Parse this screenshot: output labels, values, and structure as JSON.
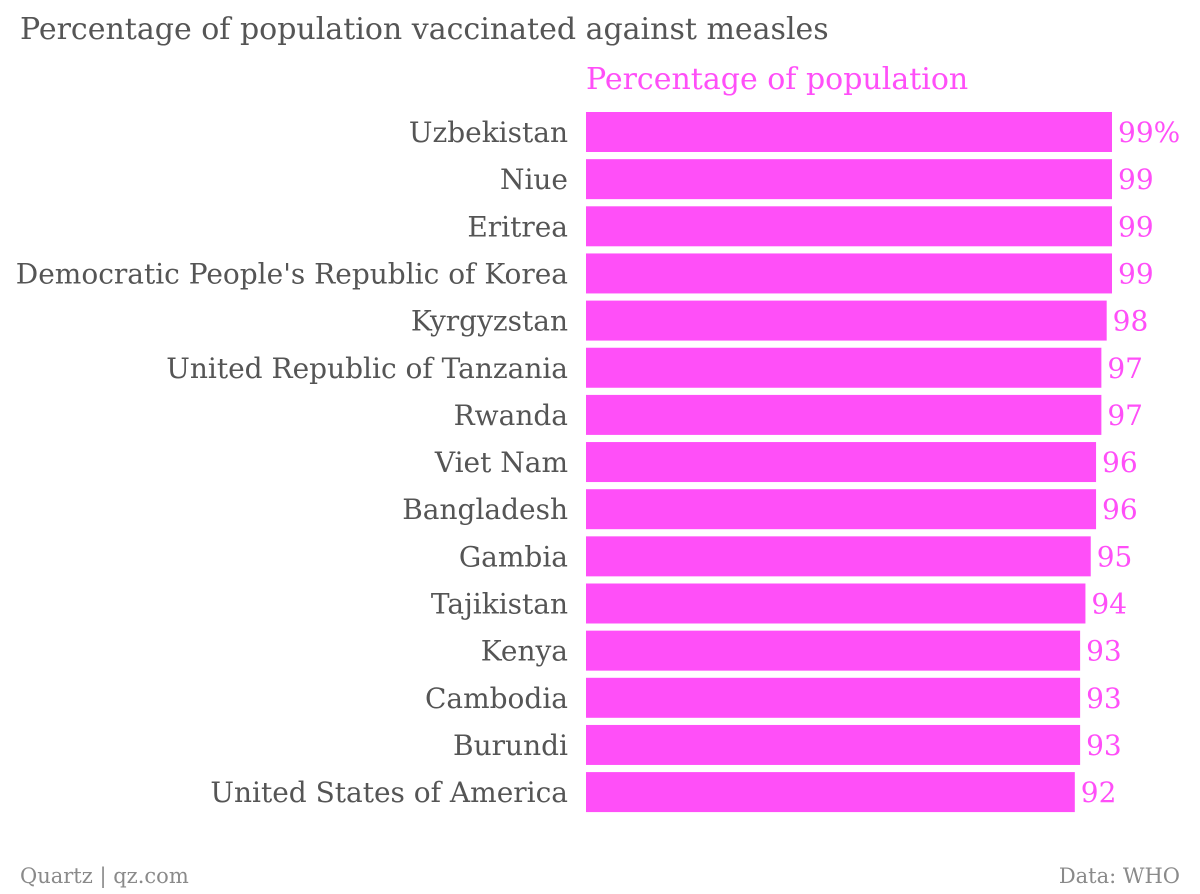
{
  "header": {
    "title": "Percentage of population vaccinated against measles"
  },
  "footer": {
    "credit": "Quartz | qz.com",
    "source": "Data: WHO"
  },
  "colors": {
    "bar": "#ff4ff8",
    "label_text": "#555555",
    "value_text": "#ff4ff8"
  },
  "chart_data": {
    "type": "bar",
    "orientation": "horizontal",
    "series": [
      {
        "name": "Percentage of population",
        "values": [
          99,
          99,
          99,
          99,
          98,
          97,
          97,
          96,
          96,
          95,
          94,
          93,
          93,
          93,
          92
        ]
      }
    ],
    "categories": [
      "Uzbekistan",
      "Niue",
      "Eritrea",
      "Democratic People's Republic of Korea",
      "Kyrgyzstan",
      "United Republic of Tanzania",
      "Rwanda",
      "Viet Nam",
      "Bangladesh",
      "Gambia",
      "Tajikistan",
      "Kenya",
      "Cambodia",
      "Burundi",
      "United States of America"
    ],
    "value_labels": [
      "99%",
      "99",
      "99",
      "99",
      "98",
      "97",
      "97",
      "96",
      "96",
      "95",
      "94",
      "93",
      "93",
      "93",
      "92"
    ],
    "xlim": [
      0,
      99
    ],
    "grid": false,
    "legend": "top"
  }
}
